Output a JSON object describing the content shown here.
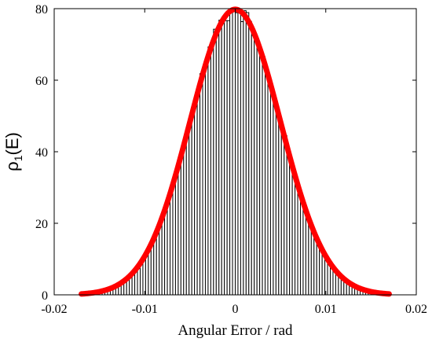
{
  "chart_data": {
    "type": "bar",
    "xlabel": "Angular Error / rad",
    "ylabel_main": "ρ",
    "ylabel_sub": "1",
    "ylabel_tail": "(E)",
    "xlim": [
      -0.02,
      0.02
    ],
    "ylim": [
      0,
      80
    ],
    "xticks": [
      -0.02,
      -0.01,
      0,
      0.01,
      0.02
    ],
    "xtick_labels": [
      "-0.02",
      "-0.01",
      "0",
      "0.01",
      "0.02"
    ],
    "yticks": [
      0,
      20,
      40,
      60,
      80
    ],
    "ytick_labels": [
      "0",
      "20",
      "40",
      "60",
      "80"
    ],
    "grid": false,
    "histogram": {
      "bin_width": 0.0003,
      "mean": 0.0,
      "sigma": 0.005,
      "peak_value": 78,
      "range": [
        -0.0165,
        0.0165
      ]
    },
    "fit_curve": {
      "type": "gaussian",
      "mean": 0.0,
      "sigma": 0.005,
      "amplitude": 79.8,
      "x_range": [
        -0.017,
        0.017
      ],
      "color": "#ff0000"
    },
    "bar_color": "#ffffff",
    "bar_edge_color": "#000000"
  }
}
